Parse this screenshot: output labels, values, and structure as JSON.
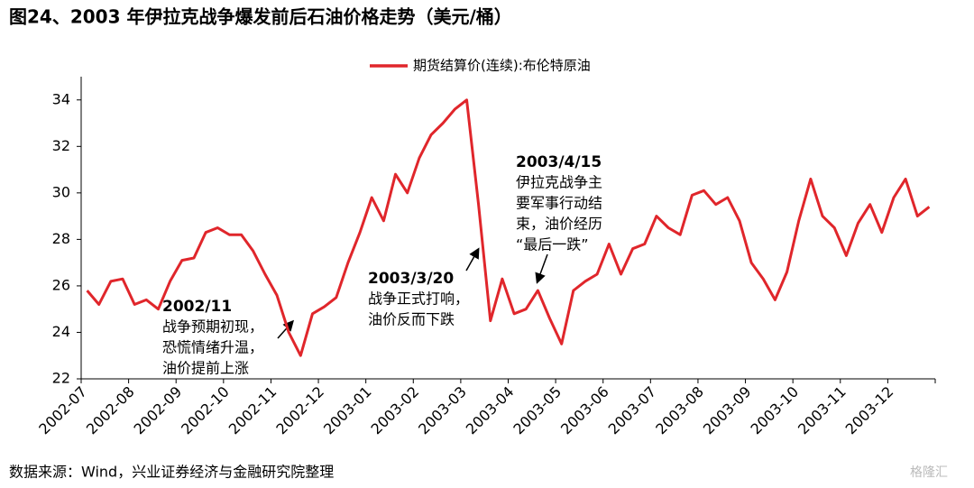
{
  "chart_data": {
    "type": "line",
    "title": "图24、2003 年伊拉克战争爆发前后石油价格走势（美元/桶）",
    "source": "数据来源：Wind，兴业证券经济与金融研究院整理",
    "watermark": "格隆汇",
    "categories": [
      "2002-07",
      "2002-08",
      "2002-09",
      "2002-10",
      "2002-11",
      "2002-12",
      "2003-01",
      "2003-02",
      "2003-03",
      "2003-04",
      "2003-05",
      "2003-06",
      "2003-07",
      "2003-08",
      "2003-09",
      "2003-10",
      "2003-11",
      "2003-12"
    ],
    "series": [
      {
        "name": "期货结算价(连续):布伦特原油",
        "color": "#e0262b",
        "values": [
          [
            25.8,
            25.2,
            26.2,
            26.3
          ],
          [
            25.2,
            25.4,
            25.0,
            26.2
          ],
          [
            27.1,
            27.2,
            28.3,
            28.5
          ],
          [
            28.2,
            28.2,
            27.5,
            26.5
          ],
          [
            25.6,
            24.0,
            23.0,
            24.8
          ],
          [
            25.1,
            25.5,
            27.0,
            28.3
          ],
          [
            29.8,
            28.8,
            30.8,
            30.0
          ],
          [
            31.5,
            32.5,
            33.0,
            33.6
          ],
          [
            34.0,
            29.5,
            24.5,
            26.3
          ],
          [
            24.8,
            25.0,
            25.8,
            24.6
          ],
          [
            23.5,
            25.8,
            26.2,
            26.5
          ],
          [
            27.8,
            26.5,
            27.6,
            27.8
          ],
          [
            29.0,
            28.5,
            28.2,
            29.9
          ],
          [
            30.1,
            29.5,
            29.8,
            28.8
          ],
          [
            27.0,
            26.3,
            25.4,
            26.6
          ],
          [
            28.8,
            30.6,
            29.0,
            28.5
          ],
          [
            27.3,
            28.7,
            29.5,
            28.3
          ],
          [
            29.8,
            30.6,
            29.0,
            29.4
          ]
        ]
      }
    ],
    "ylim": [
      22,
      35
    ],
    "yticks": [
      22,
      24,
      26,
      28,
      30,
      32,
      34
    ],
    "annotations": [
      {
        "title": "2002/11",
        "lines": [
          "战争预期初现，",
          "恐慌情绪升温，",
          "油价提前上涨"
        ]
      },
      {
        "title": "2003/3/20",
        "lines": [
          "战争正式打响，",
          "油价反而下跌"
        ]
      },
      {
        "title": "2003/4/15",
        "lines": [
          "伊拉克战争主",
          "要军事行动结",
          "束，油价经历",
          "“最后一跌”"
        ]
      }
    ]
  }
}
